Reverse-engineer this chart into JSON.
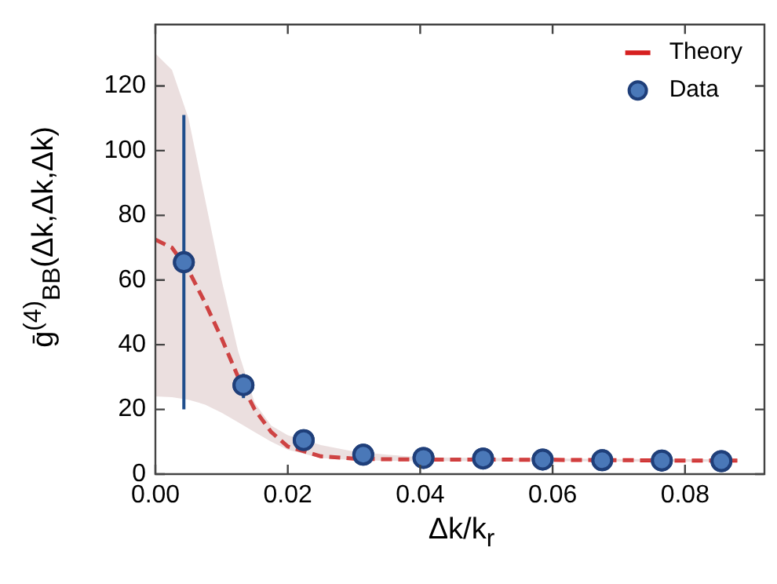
{
  "chart_data": {
    "type": "scatter",
    "xlabel": "Δk/k$_{r}$",
    "ylabel": "ḡ$^{(4)}$$_{BB}$(Δk,Δk,Δk)",
    "xlim": [
      0,
      0.092
    ],
    "xticks": [
      {
        "value": 0,
        "label": "0.00"
      },
      {
        "value": 0.02,
        "label": "0.02"
      },
      {
        "value": 0.04,
        "label": "0.04"
      },
      {
        "value": 0.06,
        "label": "0.06"
      },
      {
        "value": 0.08,
        "label": "0.08"
      }
    ],
    "ylim": [
      0,
      139
    ],
    "yticks": [
      0,
      20,
      40,
      60,
      80,
      100,
      120
    ],
    "grid": false,
    "legend": "top right",
    "series": [
      {
        "name": "Theory",
        "type": "line",
        "color": "#d62020",
        "line_style": "dashed",
        "marker": "none",
        "x": [
          0,
          0.0025,
          0.005,
          0.0075,
          0.01,
          0.0125,
          0.015,
          0.0175,
          0.02,
          0.025,
          0.03,
          0.035,
          0.04,
          0.05,
          0.06,
          0.07,
          0.08,
          0.088
        ],
        "values": [
          72.5,
          70,
          63,
          53,
          42,
          30,
          20,
          13,
          8.5,
          5.5,
          4.8,
          4.6,
          4.5,
          4.5,
          4.4,
          4.3,
          4.2,
          4.2
        ],
        "lower": [
          24,
          23.8,
          23,
          21.5,
          19,
          16,
          13,
          10,
          7.5,
          5,
          4.3,
          4.1,
          4,
          4,
          4,
          3.9,
          3.8,
          3.8
        ],
        "upper": [
          130,
          125,
          110,
          85,
          60,
          38,
          22,
          15,
          12,
          9,
          7,
          6,
          5.2,
          5,
          4.8,
          4.7,
          4.6,
          4.6
        ]
      },
      {
        "name": "Data",
        "color": "#4a78b8",
        "marker": "circle",
        "x": [
          0.0043,
          0.0133,
          0.0224,
          0.0314,
          0.0405,
          0.0495,
          0.0585,
          0.0675,
          0.0765,
          0.0855
        ],
        "values": [
          65.5,
          27.5,
          10.5,
          6,
          5,
          4.8,
          4.5,
          4.3,
          4.2,
          4
        ],
        "errors": [
          [
            20,
            111
          ],
          [
            23.5,
            31
          ],
          null,
          null,
          null,
          null,
          null,
          null,
          null,
          null
        ]
      }
    ]
  }
}
